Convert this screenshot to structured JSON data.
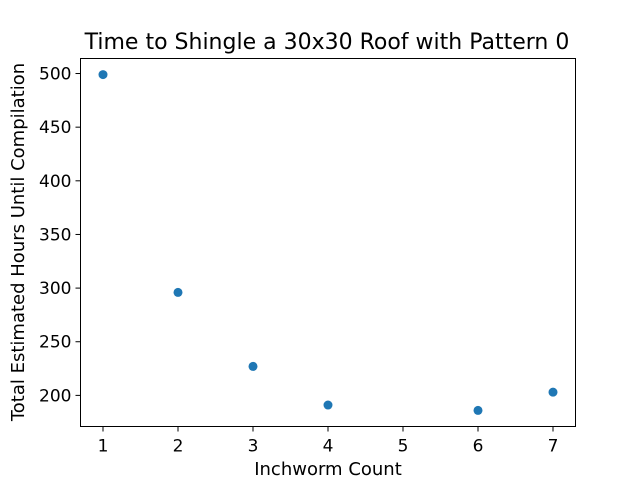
{
  "chart_data": {
    "type": "scatter",
    "title": "Time to Shingle a 30x30 Roof with Pattern 0",
    "xlabel": "Inchworm Count",
    "ylabel": "Total Estimated Hours Until Compilation",
    "x": [
      1,
      2,
      3,
      4,
      6,
      7
    ],
    "y": [
      499,
      296,
      227,
      191,
      186,
      203
    ],
    "xlim": [
      0.7,
      7.3
    ],
    "ylim": [
      171,
      514
    ],
    "xticks": [
      "1",
      "2",
      "3",
      "4",
      "5",
      "6",
      "7"
    ],
    "yticks": [
      "200",
      "250",
      "300",
      "350",
      "400",
      "450",
      "500"
    ],
    "grid": false,
    "marker_color": "#1f77b4"
  }
}
